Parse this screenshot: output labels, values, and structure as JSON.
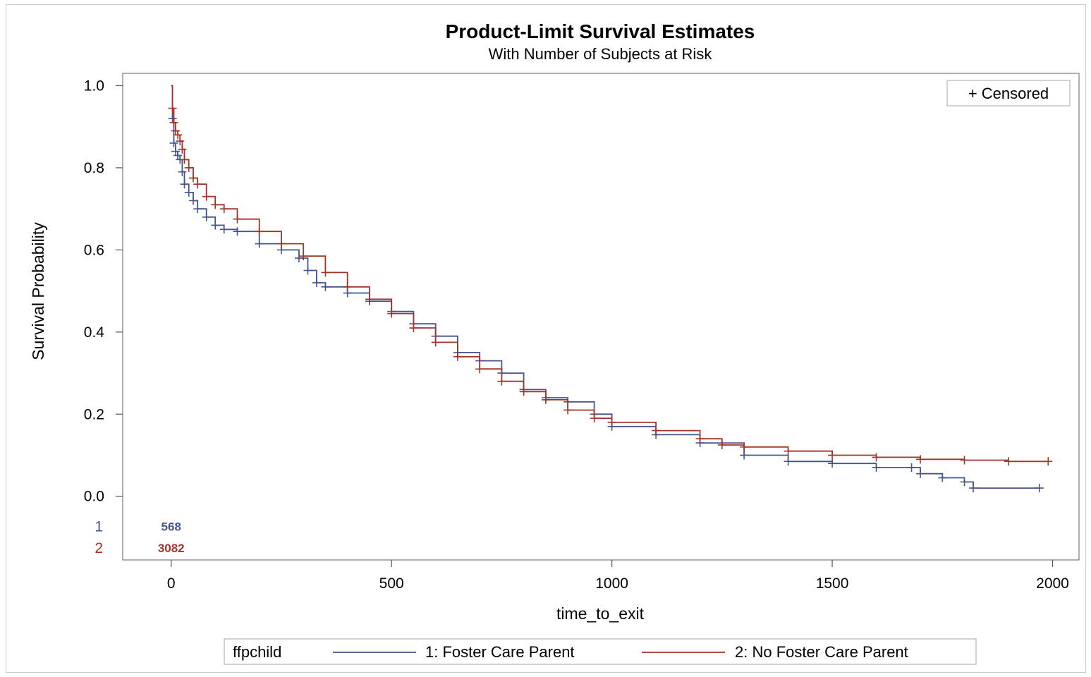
{
  "chart_data": {
    "type": "line",
    "title": "Product-Limit Survival Estimates",
    "subtitle": "With Number of Subjects at Risk",
    "xlabel": "time_to_exit",
    "ylabel": "Survival Probability",
    "xlim": [
      -110,
      2060
    ],
    "ylim": [
      -0.155,
      1.03
    ],
    "x_ticks": [
      "0",
      "500",
      "1000",
      "1500",
      "2000"
    ],
    "y_ticks": [
      "0.0",
      "0.2",
      "0.4",
      "0.6",
      "0.8",
      "1.0"
    ],
    "inset_legend": "+ Censored",
    "legend": {
      "title": "ffpchild",
      "items": [
        {
          "label": "1: Foster Care Parent",
          "color": "#45558e"
        },
        {
          "label": "2: No Foster Care Parent",
          "color": "#a23529"
        }
      ]
    },
    "at_risk": {
      "rows": [
        {
          "label": "1",
          "value": "568",
          "color": "#45558e"
        },
        {
          "label": "2",
          "value": "3082",
          "color": "#a23529"
        }
      ]
    },
    "series": [
      {
        "name": "1: Foster Care Parent",
        "color": "#45558e",
        "x": [
          0,
          3,
          6,
          10,
          15,
          20,
          25,
          30,
          40,
          50,
          60,
          80,
          100,
          120,
          150,
          200,
          250,
          290,
          310,
          330,
          350,
          400,
          450,
          500,
          550,
          600,
          650,
          700,
          750,
          800,
          850,
          900,
          960,
          1000,
          1100,
          1200,
          1300,
          1400,
          1500,
          1600,
          1680,
          1700,
          1750,
          1800,
          1820,
          1970
        ],
        "y": [
          1.0,
          0.92,
          0.86,
          0.84,
          0.83,
          0.82,
          0.79,
          0.76,
          0.74,
          0.72,
          0.7,
          0.68,
          0.66,
          0.65,
          0.645,
          0.615,
          0.6,
          0.58,
          0.55,
          0.52,
          0.51,
          0.495,
          0.475,
          0.45,
          0.42,
          0.39,
          0.35,
          0.33,
          0.3,
          0.26,
          0.24,
          0.23,
          0.2,
          0.17,
          0.15,
          0.13,
          0.1,
          0.085,
          0.08,
          0.07,
          0.07,
          0.055,
          0.045,
          0.035,
          0.02,
          0.02
        ]
      },
      {
        "name": "2: No Foster Care Parent",
        "color": "#a23529",
        "x": [
          0,
          3,
          6,
          10,
          15,
          20,
          25,
          30,
          40,
          50,
          60,
          80,
          100,
          120,
          150,
          200,
          250,
          300,
          350,
          400,
          450,
          500,
          550,
          600,
          650,
          700,
          750,
          800,
          850,
          900,
          960,
          1000,
          1100,
          1200,
          1250,
          1300,
          1400,
          1500,
          1600,
          1700,
          1800,
          1900,
          1990
        ],
        "y": [
          1.0,
          0.945,
          0.91,
          0.89,
          0.88,
          0.865,
          0.845,
          0.82,
          0.8,
          0.775,
          0.76,
          0.73,
          0.71,
          0.7,
          0.675,
          0.645,
          0.615,
          0.585,
          0.545,
          0.51,
          0.48,
          0.445,
          0.41,
          0.375,
          0.34,
          0.31,
          0.28,
          0.255,
          0.235,
          0.21,
          0.19,
          0.18,
          0.16,
          0.14,
          0.125,
          0.12,
          0.11,
          0.1,
          0.095,
          0.09,
          0.088,
          0.085,
          0.085
        ]
      }
    ]
  }
}
